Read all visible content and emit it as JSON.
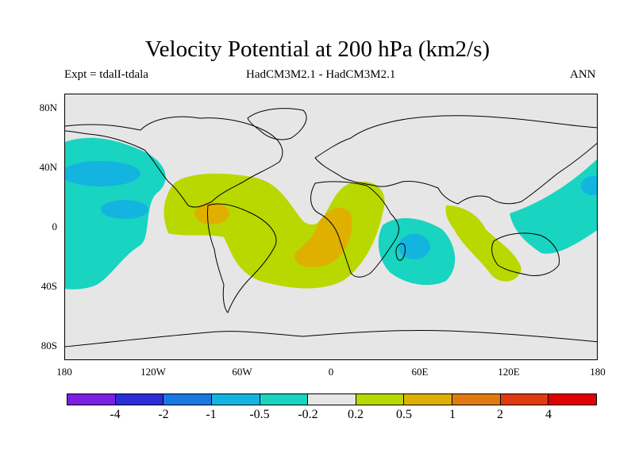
{
  "header": {
    "title": "Velocity Potential at 200 hPa (km2/s)",
    "left": "Expt = tdalI-tdala",
    "center": "HadCM3M2.1 - HadCM3M2.1",
    "right": "ANN"
  },
  "axes": {
    "lat_labels": [
      "80N",
      "40N",
      "0",
      "40S",
      "80S"
    ],
    "lon_labels": [
      "180",
      "120W",
      "60W",
      "0",
      "60E",
      "120E",
      "180"
    ]
  },
  "colorbar": {
    "colors": [
      "#7a20e0",
      "#2c2cd8",
      "#1a78e0",
      "#14b4e0",
      "#18d4c0",
      "#e6e6e6",
      "#b8d800",
      "#e0b000",
      "#e07a10",
      "#e03a10",
      "#e00000"
    ],
    "labels": [
      "-4",
      "-2",
      "-1",
      "-0.5",
      "-0.2",
      "0.2",
      "0.5",
      "1",
      "2",
      "4"
    ]
  },
  "legend_colors": {
    "land_line": "#000000",
    "neutral": "#e6e6e6"
  }
}
